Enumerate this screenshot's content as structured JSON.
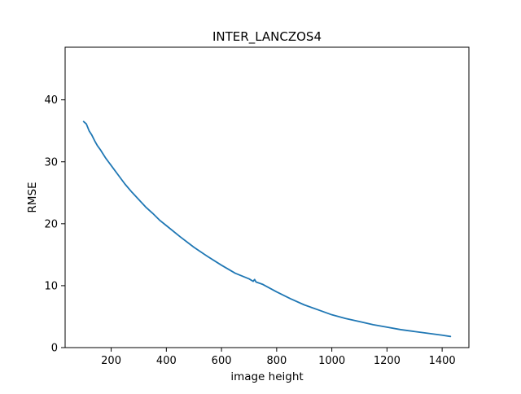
{
  "chart_data": {
    "type": "line",
    "title": "INTER_LANCZOS4",
    "xlabel": "image height",
    "ylabel": "RMSE",
    "xlim": [
      33,
      1497
    ],
    "ylim": [
      0,
      48.5
    ],
    "x_ticks": [
      200,
      400,
      600,
      800,
      1000,
      1200,
      1400
    ],
    "y_ticks": [
      0,
      10,
      20,
      30,
      40
    ],
    "grid": false,
    "legend": "none",
    "series": [
      {
        "color": "#1f77b4",
        "x": [
          100,
          110,
          120,
          130,
          140,
          150,
          160,
          170,
          180,
          190,
          200,
          225,
          250,
          275,
          300,
          325,
          350,
          375,
          400,
          450,
          500,
          550,
          600,
          650,
          700,
          715,
          720,
          725,
          750,
          800,
          850,
          900,
          950,
          1000,
          1050,
          1100,
          1150,
          1200,
          1250,
          1300,
          1350,
          1400,
          1430
        ],
        "y": [
          36.5,
          36.1,
          35.0,
          34.3,
          33.4,
          32.6,
          32.0,
          31.3,
          30.6,
          30.0,
          29.4,
          27.9,
          26.4,
          25.1,
          23.9,
          22.7,
          21.7,
          20.6,
          19.7,
          17.9,
          16.2,
          14.7,
          13.3,
          12.0,
          11.1,
          10.7,
          11.0,
          10.6,
          10.2,
          9.0,
          7.9,
          6.9,
          6.1,
          5.3,
          4.7,
          4.2,
          3.7,
          3.3,
          2.9,
          2.6,
          2.3,
          2.0,
          1.8
        ]
      }
    ]
  }
}
